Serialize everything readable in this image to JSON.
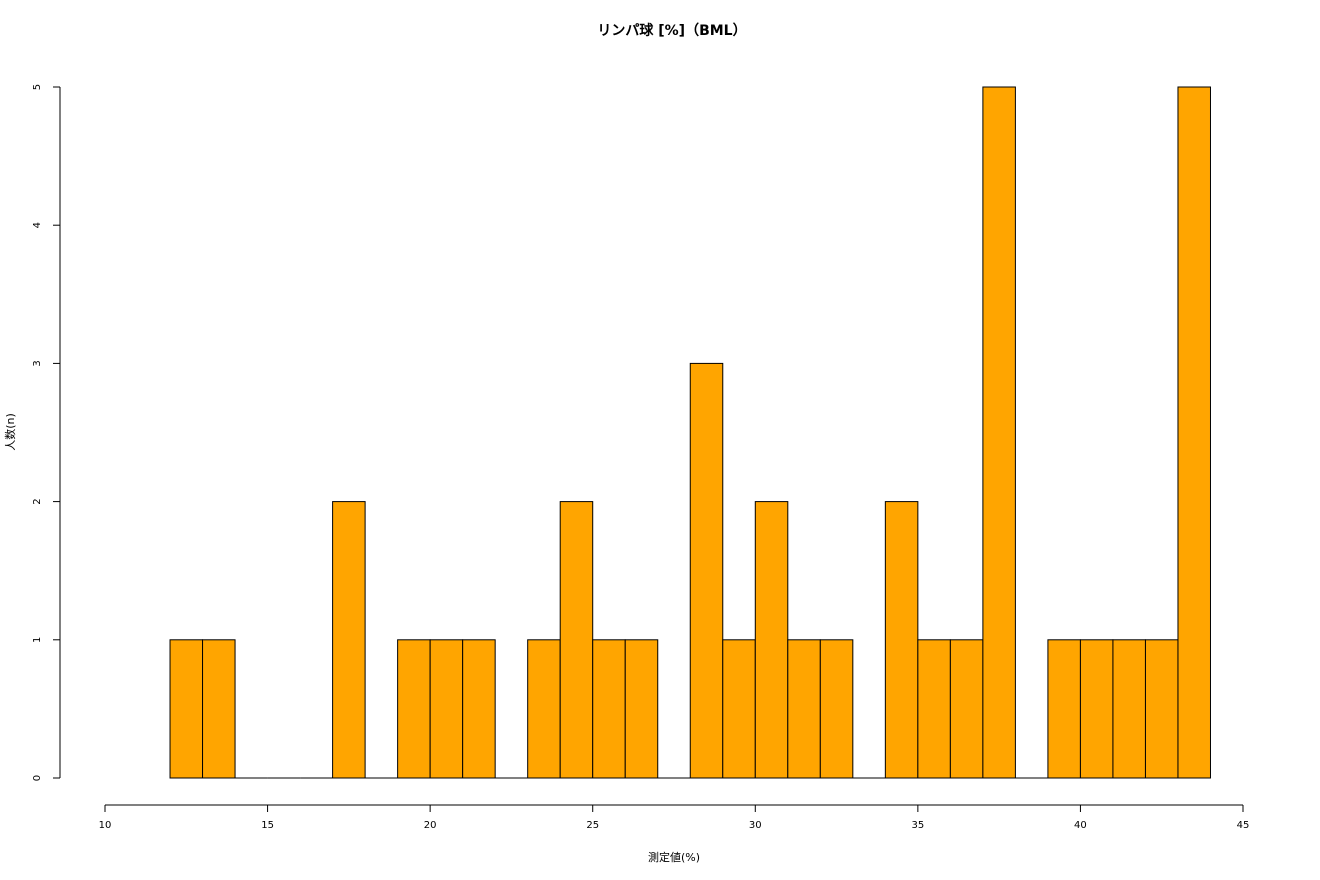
{
  "chart_data": {
    "type": "bar",
    "title": "リンパ球 [%]（BML）",
    "xlabel": "測定値(%)",
    "ylabel": "人数(n)",
    "bin_width": 1,
    "bins": [
      {
        "x0": 12,
        "x1": 13,
        "count": 1
      },
      {
        "x0": 13,
        "x1": 14,
        "count": 1
      },
      {
        "x0": 14,
        "x1": 15,
        "count": 0
      },
      {
        "x0": 15,
        "x1": 16,
        "count": 0
      },
      {
        "x0": 16,
        "x1": 17,
        "count": 0
      },
      {
        "x0": 17,
        "x1": 18,
        "count": 2
      },
      {
        "x0": 18,
        "x1": 19,
        "count": 0
      },
      {
        "x0": 19,
        "x1": 20,
        "count": 1
      },
      {
        "x0": 20,
        "x1": 21,
        "count": 1
      },
      {
        "x0": 21,
        "x1": 22,
        "count": 1
      },
      {
        "x0": 22,
        "x1": 23,
        "count": 0
      },
      {
        "x0": 23,
        "x1": 24,
        "count": 1
      },
      {
        "x0": 24,
        "x1": 25,
        "count": 2
      },
      {
        "x0": 25,
        "x1": 26,
        "count": 1
      },
      {
        "x0": 26,
        "x1": 27,
        "count": 1
      },
      {
        "x0": 27,
        "x1": 28,
        "count": 0
      },
      {
        "x0": 28,
        "x1": 29,
        "count": 3
      },
      {
        "x0": 29,
        "x1": 30,
        "count": 1
      },
      {
        "x0": 30,
        "x1": 31,
        "count": 2
      },
      {
        "x0": 31,
        "x1": 32,
        "count": 1
      },
      {
        "x0": 32,
        "x1": 33,
        "count": 1
      },
      {
        "x0": 33,
        "x1": 34,
        "count": 0
      },
      {
        "x0": 34,
        "x1": 35,
        "count": 2
      },
      {
        "x0": 35,
        "x1": 36,
        "count": 1
      },
      {
        "x0": 36,
        "x1": 37,
        "count": 1
      },
      {
        "x0": 37,
        "x1": 38,
        "count": 5
      },
      {
        "x0": 38,
        "x1": 39,
        "count": 0
      },
      {
        "x0": 39,
        "x1": 40,
        "count": 1
      },
      {
        "x0": 40,
        "x1": 41,
        "count": 1
      },
      {
        "x0": 41,
        "x1": 42,
        "count": 1
      },
      {
        "x0": 42,
        "x1": 43,
        "count": 1
      },
      {
        "x0": 43,
        "x1": 44,
        "count": 5
      }
    ],
    "xlim": [
      10,
      45
    ],
    "ylim": [
      0,
      5
    ],
    "x_ticks": [
      10,
      15,
      20,
      25,
      30,
      35,
      40,
      45
    ],
    "y_ticks": [
      0,
      1,
      2,
      3,
      4,
      5
    ],
    "bar_color": "#FFA500",
    "bar_stroke": "#000000",
    "grid": false,
    "legend": "none"
  }
}
